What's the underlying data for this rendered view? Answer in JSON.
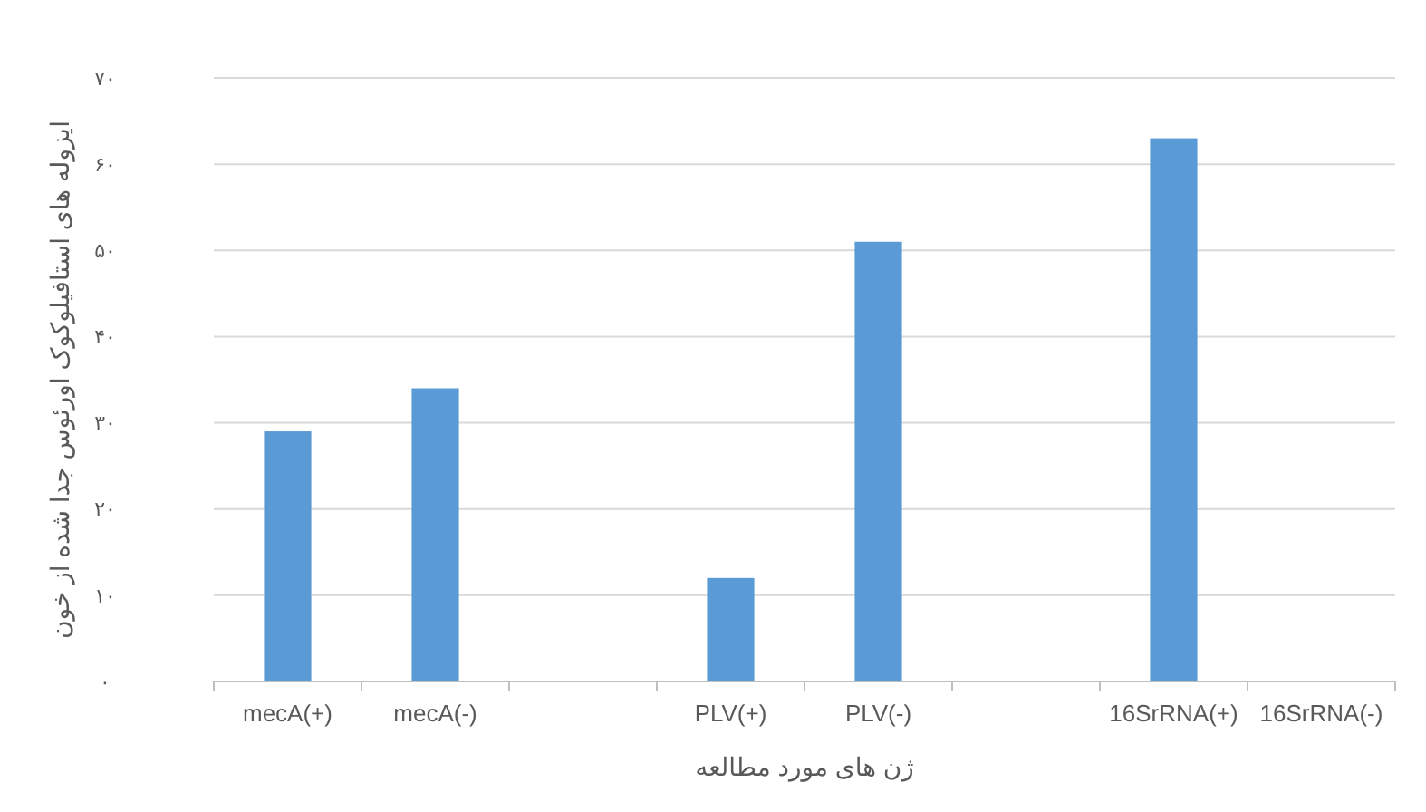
{
  "chart_data": {
    "type": "bar",
    "xlabel": "ژن های مورد مطالعه",
    "ylabel": "ایزوله های استافیلوکوک اورئوس جدا شده از خون",
    "categories": [
      "mecA(+)",
      "mecA(-)",
      null,
      "PLV(+)",
      "PLV(-)",
      null,
      "16SrRNA(+)",
      "16SrRNA(-)"
    ],
    "values": [
      29,
      34,
      null,
      12,
      51,
      null,
      63,
      0
    ],
    "color": "#5b9bd5",
    "ylim": [
      0,
      70
    ],
    "yticks": [
      {
        "value": 0,
        "label": "۰"
      },
      {
        "value": 10,
        "label": "۱۰"
      },
      {
        "value": 20,
        "label": "۲۰"
      },
      {
        "value": 30,
        "label": "۳۰"
      },
      {
        "value": 40,
        "label": "۴۰"
      },
      {
        "value": 50,
        "label": "۵۰"
      },
      {
        "value": 60,
        "label": "۶۰"
      },
      {
        "value": 70,
        "label": "۷۰"
      }
    ],
    "grid": "y"
  }
}
